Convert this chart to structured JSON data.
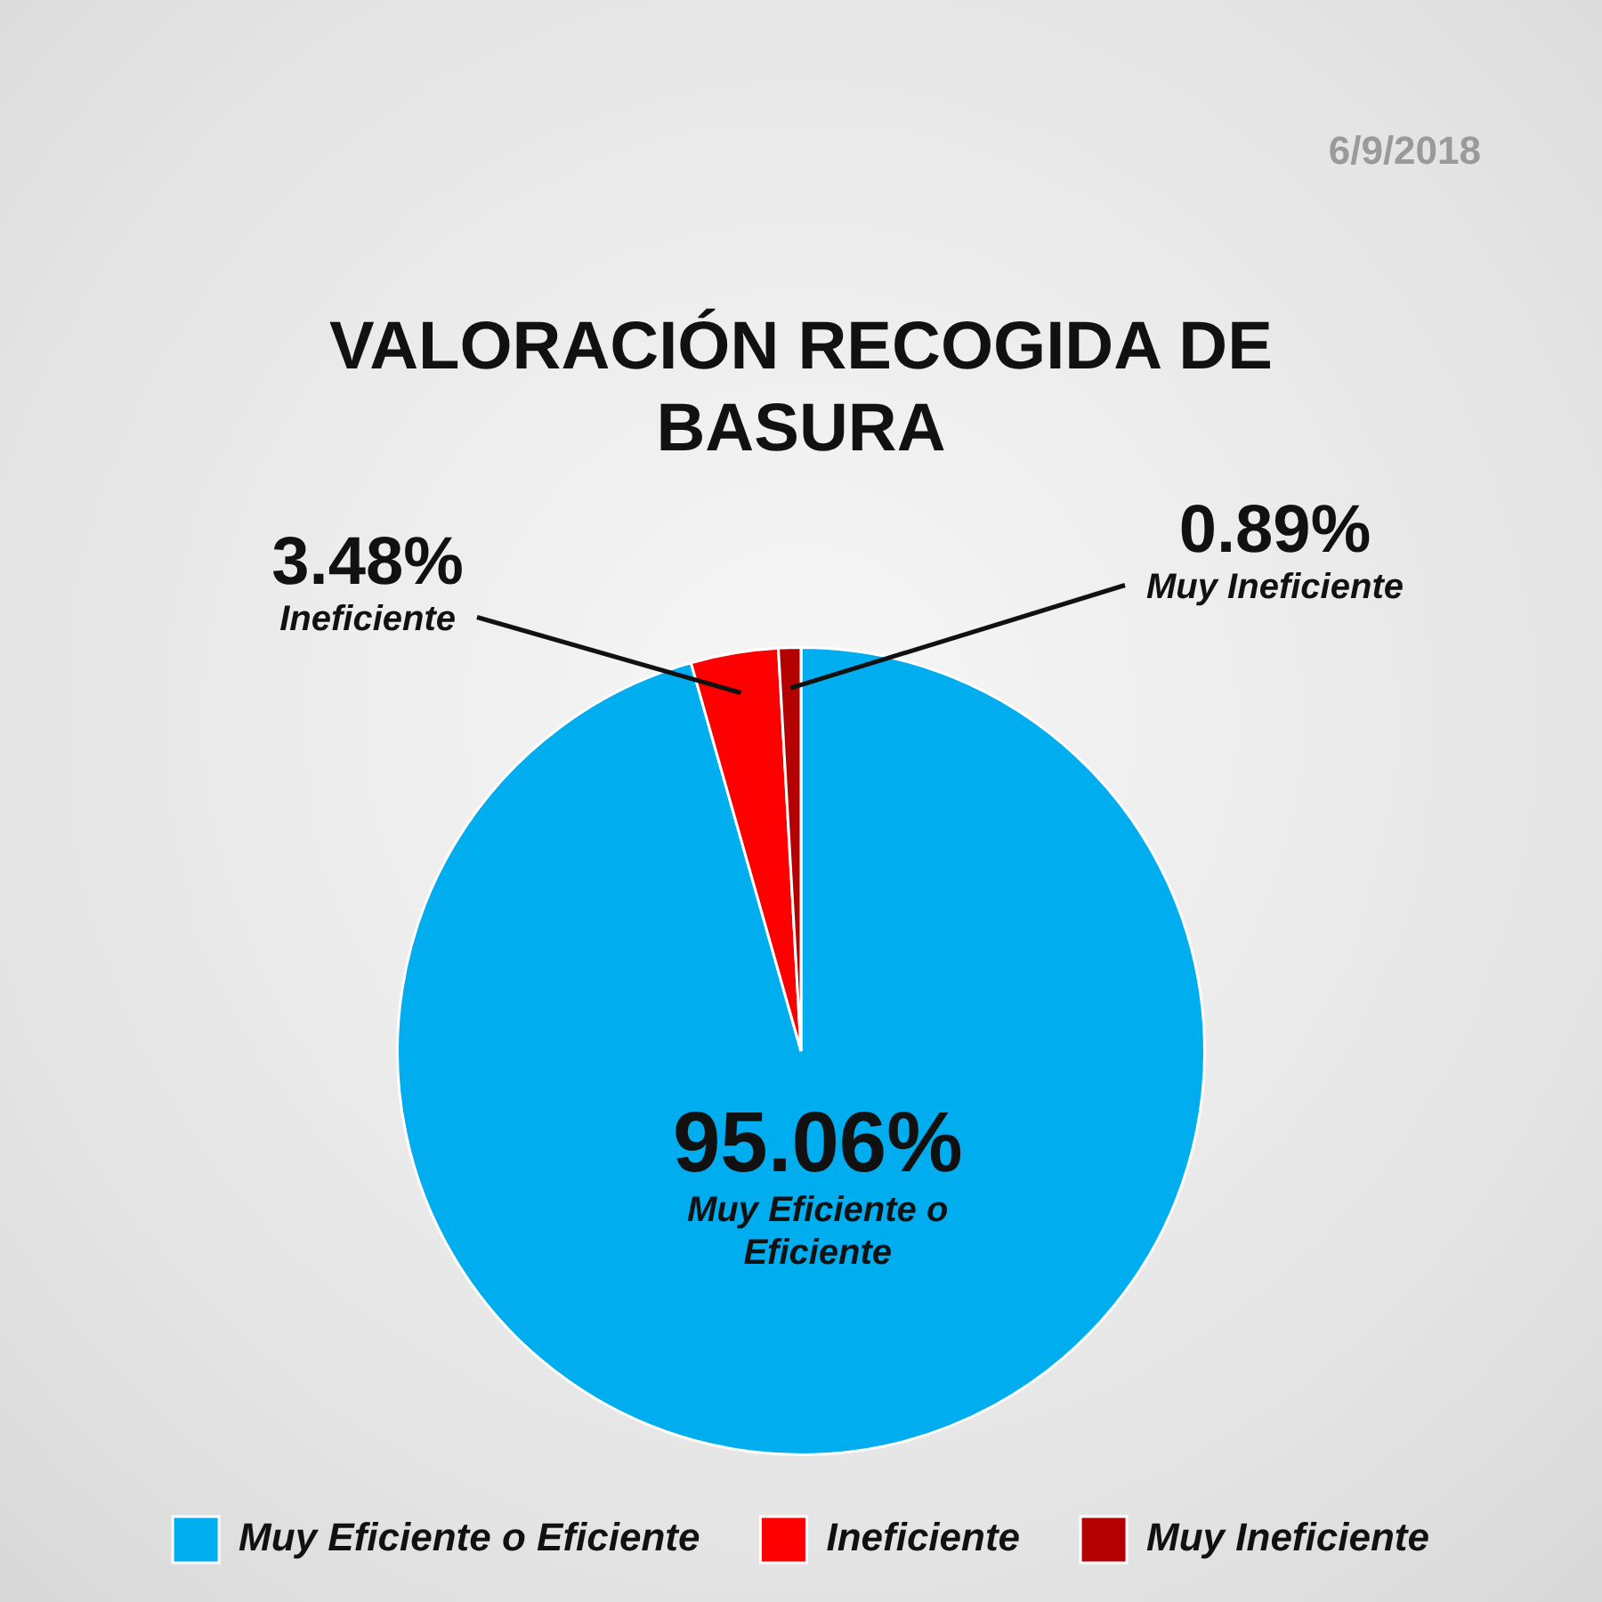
{
  "chart_data": {
    "type": "pie",
    "title": "VALORACIÓN RECOGIDA DE BASURA",
    "categories": [
      "Muy Eficiente o Eficiente",
      "Ineficiente",
      "Muy Ineficiente"
    ],
    "values": [
      95.06,
      3.48,
      0.89
    ],
    "value_labels": [
      "95.06%",
      "3.48%",
      "0.89%"
    ],
    "colors": [
      "#00adef",
      "#fe0000",
      "#b30000"
    ],
    "legend": "bottom",
    "annotations": [
      "6/9/2018"
    ]
  }
}
